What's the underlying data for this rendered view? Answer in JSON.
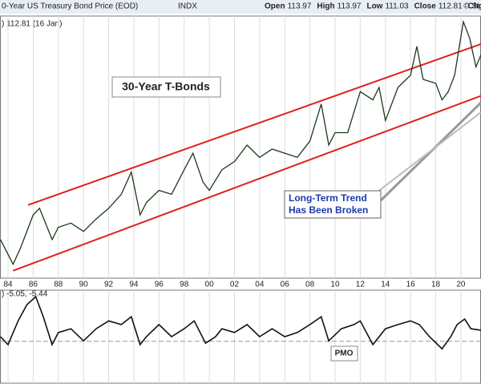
{
  "chart_data": [
    {
      "type": "line",
      "title": "0-Year US Treasury Bond Price (EOD)",
      "exchange": "INDX",
      "copyright": "© St",
      "quote": [
        {
          "label": "Open",
          "value": 113.97
        },
        {
          "label": "High",
          "value": 113.97
        },
        {
          "label": "Low",
          "value": 111.03
        },
        {
          "label": "Close",
          "value": 112.81
        }
      ],
      "change_label": "Chg -",
      "legend_text": ") 112.81 (16 Jan)",
      "annotations": [
        "30-Year T-Bonds",
        "Long-Term Trend",
        "Has Been Broken"
      ],
      "xlim": [
        1983.36,
        2021.6
      ],
      "ylim": [
        60,
        180
      ],
      "xticks": [
        {
          "value": 1984,
          "label": "84"
        },
        {
          "value": 1986,
          "label": "86"
        },
        {
          "value": 1988,
          "label": "88"
        },
        {
          "value": 1990,
          "label": "90"
        },
        {
          "value": 1992,
          "label": "92"
        },
        {
          "value": 1994,
          "label": "94"
        },
        {
          "value": 1996,
          "label": "96"
        },
        {
          "value": 1998,
          "label": "98"
        },
        {
          "value": 2000,
          "label": "00"
        },
        {
          "value": 2002,
          "label": "02"
        },
        {
          "value": 2004,
          "label": "04"
        },
        {
          "value": 2006,
          "label": "06"
        },
        {
          "value": 2008,
          "label": "08"
        },
        {
          "value": 2010,
          "label": "10"
        },
        {
          "value": 2012,
          "label": "12"
        },
        {
          "value": 2014,
          "label": "14"
        },
        {
          "value": 2016,
          "label": "16"
        },
        {
          "value": 2018,
          "label": "18"
        },
        {
          "value": 2020,
          "label": "20"
        }
      ],
      "grid": true,
      "series": [
        {
          "color": "#1a3a1a",
          "x": [
            1983.4,
            1984.4,
            1985,
            1986,
            1986.5,
            1987.5,
            1988,
            1989,
            1990,
            1991,
            1992,
            1993,
            1993.8,
            1994.5,
            1995,
            1996,
            1997,
            1998,
            1998.7,
            1999.5,
            2000,
            2001,
            2002,
            2003,
            2004,
            2005,
            2006,
            2007,
            2008,
            2008.9,
            2009.5,
            2010,
            2011,
            2012,
            2013,
            2013.5,
            2014,
            2015,
            2016,
            2016.5,
            2017,
            2018,
            2018.5,
            2019,
            2019.5,
            2020.2,
            2020.7,
            2021.2,
            2021.6
          ],
          "values": [
            77.7,
            66.4,
            73.9,
            89.0,
            92.0,
            77.7,
            83.3,
            85.2,
            81.4,
            87.1,
            92.0,
            98.4,
            108.6,
            89.0,
            94.6,
            100.2,
            98.4,
            109.6,
            117.2,
            104.0,
            100.2,
            109.6,
            113.4,
            120.9,
            115.3,
            119.1,
            117.2,
            115.3,
            122.8,
            139.7,
            120.9,
            126.6,
            126.6,
            145.4,
            141.6,
            147.3,
            132.2,
            147.3,
            152.9,
            166.1,
            151.0,
            149.2,
            141.6,
            145.4,
            152.9,
            177.4,
            169.8,
            156.7,
            162.3
          ]
        }
      ],
      "trendlines": [
        {
          "color": "#e02020",
          "x": [
            1985.6,
            2021.6
          ],
          "values": [
            93.5,
            167.2
          ]
        },
        {
          "color": "#e02020",
          "x": [
            1984.4,
            2021.6
          ],
          "values": [
            63.4,
            143.5
          ]
        }
      ]
    },
    {
      "type": "line",
      "legend_text": ") -5.05, -5.44",
      "annotations": [
        "PMO"
      ],
      "xlim": [
        1983.36,
        2021.6
      ],
      "ylim": [
        -9,
        11
      ],
      "reference_line": 0,
      "series": [
        {
          "color": "#111111",
          "x": [
            1983.4,
            1984,
            1984.8,
            1985.5,
            1986.2,
            1986.8,
            1987.5,
            1988,
            1989,
            1990,
            1991,
            1992,
            1993,
            1993.8,
            1994.5,
            1995,
            1996,
            1997,
            1998,
            1998.8,
            1999.7,
            2000.5,
            2001,
            2002,
            2003,
            2004,
            2005,
            2006,
            2007,
            2008,
            2008.9,
            2009.5,
            2010.5,
            2011.5,
            2012,
            2013,
            2014,
            2015,
            2016,
            2016.7,
            2017.5,
            2018.5,
            2019.2,
            2019.7,
            2020.3,
            2020.8,
            2021.6
          ],
          "values": [
            1.0,
            -0.7,
            4.4,
            7.9,
            9.6,
            5.3,
            -0.7,
            1.9,
            2.7,
            0.1,
            2.7,
            4.4,
            3.6,
            5.3,
            -0.7,
            1.0,
            3.6,
            1.0,
            2.7,
            4.4,
            -0.4,
            1.0,
            2.7,
            1.9,
            3.6,
            1.0,
            2.7,
            1.0,
            1.9,
            3.6,
            5.3,
            0.1,
            2.7,
            3.6,
            4.4,
            -0.7,
            2.7,
            3.6,
            4.4,
            3.6,
            1.0,
            -1.6,
            1.0,
            3.6,
            4.8,
            2.7,
            2.4
          ]
        }
      ]
    }
  ]
}
